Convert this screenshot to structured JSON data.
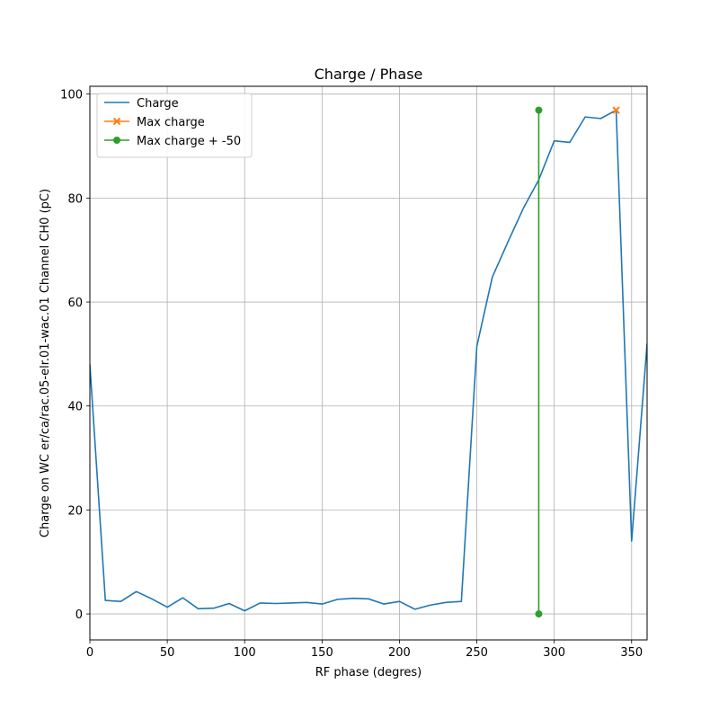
{
  "chart_data": {
    "type": "line",
    "title": "Charge / Phase",
    "xlabel": "RF phase (degres)",
    "ylabel": "Charge on WC er/ca/rac.05-elr.01-wac.01 Channel CH0 (pC)",
    "xlim": [
      0,
      360
    ],
    "ylim": [
      -5,
      101.5
    ],
    "xticks": [
      0,
      50,
      100,
      150,
      200,
      250,
      300,
      350
    ],
    "yticks": [
      0,
      20,
      40,
      60,
      80,
      100
    ],
    "grid": true,
    "legend_position": "upper left",
    "series": [
      {
        "name": "Charge",
        "color": "#1f77b4",
        "marker": "none",
        "x": [
          0,
          10,
          20,
          30,
          40,
          50,
          60,
          70,
          80,
          90,
          100,
          110,
          120,
          130,
          140,
          150,
          160,
          170,
          180,
          190,
          200,
          210,
          220,
          230,
          240,
          250,
          260,
          270,
          280,
          290,
          300,
          310,
          320,
          330,
          340,
          350,
          360
        ],
        "y": [
          48,
          2.6,
          2.4,
          4.3,
          2.9,
          1.3,
          3.1,
          1.0,
          1.1,
          2.0,
          0.6,
          2.1,
          2.0,
          2.1,
          2.2,
          1.9,
          2.8,
          3.0,
          2.9,
          1.9,
          2.4,
          0.9,
          1.7,
          2.2,
          2.4,
          51.5,
          64.8,
          71.5,
          78.0,
          83.5,
          91.0,
          90.7,
          95.6,
          95.3,
          96.9,
          14.0,
          52.0
        ]
      },
      {
        "name": "Max charge",
        "color": "#ff7f0e",
        "marker": "x",
        "x": [
          340
        ],
        "y": [
          96.9
        ]
      },
      {
        "name": "Max charge + -50",
        "color": "#2ca02c",
        "marker": "o",
        "x": [
          290,
          290
        ],
        "y": [
          0,
          96.9
        ]
      }
    ]
  }
}
